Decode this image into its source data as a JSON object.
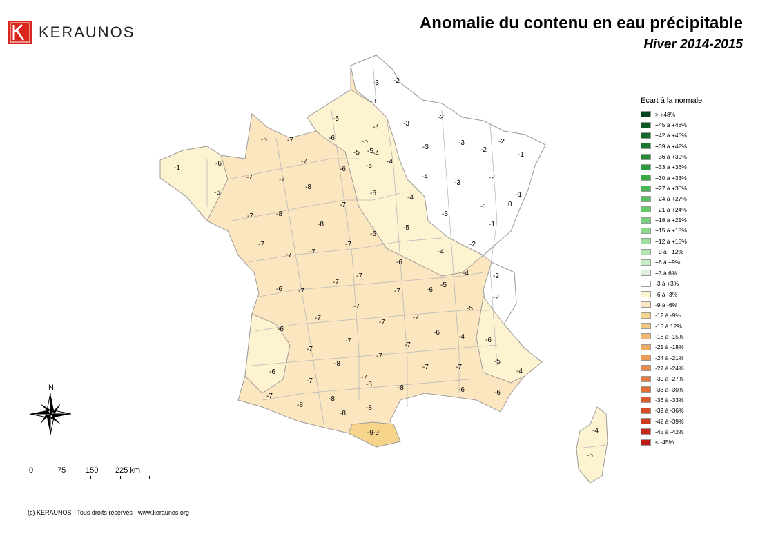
{
  "brand": {
    "name": "KERAUNOS",
    "logo_color": "#d9261c"
  },
  "header": {
    "title": "Anomalie du contenu en eau précipitable",
    "subtitle": "Hiver 2014-2015"
  },
  "legend": {
    "title": "Ecart à la normale",
    "items": [
      {
        "label": "> +48%",
        "color": "#00441b"
      },
      {
        "label": "+45 à +48%",
        "color": "#0b5a22"
      },
      {
        "label": "+42 à +45%",
        "color": "#14692a"
      },
      {
        "label": "+39 à +42%",
        "color": "#1b7a30"
      },
      {
        "label": "+36 à +39%",
        "color": "#238b36"
      },
      {
        "label": "+33 à +36%",
        "color": "#2e9a3e"
      },
      {
        "label": "+30 à +33%",
        "color": "#3aa948"
      },
      {
        "label": "+27 à +30%",
        "color": "#48b553"
      },
      {
        "label": "+24 à +27%",
        "color": "#57c05f"
      },
      {
        "label": "+21 à +24%",
        "color": "#67c96c"
      },
      {
        "label": "+18 à +21%",
        "color": "#78d07b"
      },
      {
        "label": "+15 à +18%",
        "color": "#8ad88c"
      },
      {
        "label": "+12 à +15%",
        "color": "#9edf9e"
      },
      {
        "label": "+9 à +12%",
        "color": "#b2e6b1"
      },
      {
        "label": "+6 à +9%",
        "color": "#c6edc4"
      },
      {
        "label": "+3 à 6%",
        "color": "#daf3d8"
      },
      {
        "label": "-3 à +3%",
        "color": "#ffffff"
      },
      {
        "label": "-6 à -3%",
        "color": "#fdf3d0"
      },
      {
        "label": "-9 à -6%",
        "color": "#fbe6c0"
      },
      {
        "label": "-12 à -9%",
        "color": "#f7d48c"
      },
      {
        "label": "-15 à 12%",
        "color": "#f3c780"
      },
      {
        "label": "-18 à -15%",
        "color": "#f0b872"
      },
      {
        "label": "-21 à -18%",
        "color": "#eda964"
      },
      {
        "label": "-24 à -21%",
        "color": "#ea9a57"
      },
      {
        "label": "-27 à -24%",
        "color": "#e78b4b"
      },
      {
        "label": "-30 à -27%",
        "color": "#e37b40"
      },
      {
        "label": "-33 à -30%",
        "color": "#df6b36"
      },
      {
        "label": "-36 à -33%",
        "color": "#da5b2d"
      },
      {
        "label": "-39 à -36%",
        "color": "#d44b25"
      },
      {
        "label": "-42 à -39%",
        "color": "#cd3a1e"
      },
      {
        "label": "-45 à -42%",
        "color": "#c52a18"
      },
      {
        "label": "< -45%",
        "color": "#bc1a12"
      }
    ]
  },
  "map": {
    "colors": {
      "band_m9_m6": "#fbe6c0",
      "band_m6_m3": "#fdf3d0",
      "band_m12_m9": "#f7d48c",
      "band_m3_p3": "#ffffff",
      "border": "#9c9c9c"
    },
    "department_values": [
      "-3",
      "-2",
      "-3",
      "-5",
      "-4",
      "-3",
      "-2",
      "-5",
      "-6",
      "-6",
      "-7",
      "-5",
      "-5",
      "-4",
      "-4",
      "-5",
      "-3",
      "-2",
      "-2",
      "-1",
      "-1",
      "-3",
      "-6",
      "-7",
      "-7",
      "-6",
      "-4",
      "-3",
      "-2",
      "-1",
      "-6",
      "-7",
      "-8",
      "-6",
      "-4",
      "-3",
      "-1",
      "0",
      "-7",
      "-8",
      "-8",
      "-7",
      "-6",
      "-5",
      "-1",
      "-7",
      "-7",
      "-7",
      "-7",
      "-6",
      "-4",
      "-2",
      "-6",
      "-7",
      "-7",
      "-7",
      "-7",
      "-6",
      "-5",
      "-4",
      "-2",
      "-2",
      "-6",
      "-7",
      "-7",
      "-7",
      "-7",
      "-5",
      "-7",
      "-7",
      "-7",
      "-7",
      "-6",
      "-4",
      "-6",
      "-7",
      "-8",
      "-7",
      "-8",
      "-7",
      "-5",
      "-4",
      "-6",
      "-7",
      "-8",
      "-8",
      "-8",
      "-6",
      "-8",
      "-9",
      "-7",
      "-6",
      "-8",
      "-9",
      "-4",
      "-6"
    ]
  },
  "scale": {
    "ticks": [
      "0",
      "75",
      "150",
      "225 km"
    ]
  },
  "compass": {
    "north": "N"
  },
  "footer": {
    "copyright": "(c) KERAUNOS - Tous droits réservés - www.keraunos.org"
  }
}
